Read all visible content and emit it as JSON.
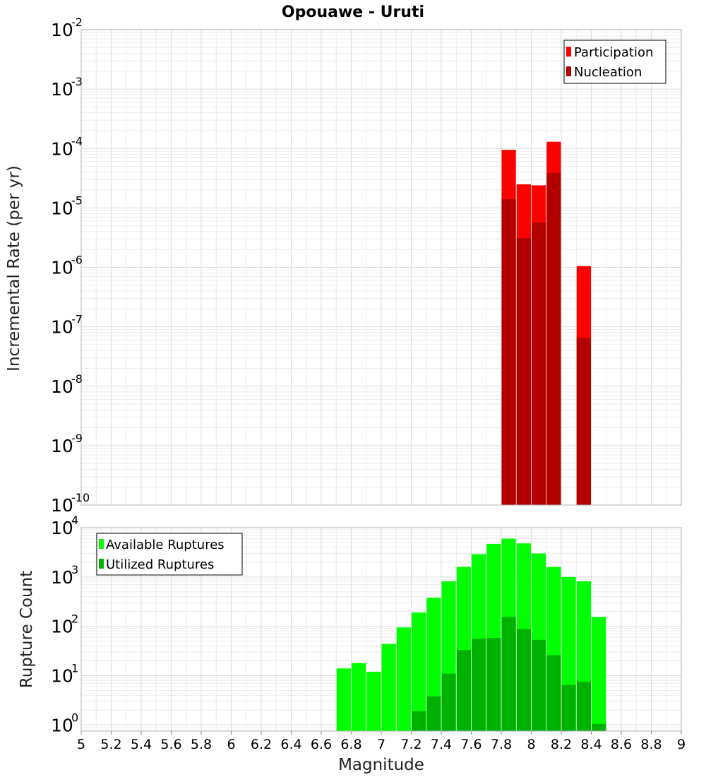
{
  "chart_data": [
    {
      "type": "bar",
      "title": "Opouawe - Uruti",
      "xlabel": "Magnitude",
      "ylabel": "Incremental Rate (per yr)",
      "yscale": "log",
      "ylim": [
        1e-10,
        0.01
      ],
      "xlim": [
        5,
        9
      ],
      "y_tick_exponents": [
        -10,
        -9,
        -8,
        -7,
        -6,
        -5,
        -4,
        -3,
        -2
      ],
      "legend": {
        "placement": "top-right",
        "entries": [
          "Participation",
          "Nucleation"
        ]
      },
      "series": [
        {
          "name": "Participation",
          "color": "#ff0000",
          "points": [
            {
              "x": 7.85,
              "y": 9.5e-05
            },
            {
              "x": 7.95,
              "y": 2.5e-05
            },
            {
              "x": 8.05,
              "y": 2.4e-05
            },
            {
              "x": 8.15,
              "y": 0.00013
            },
            {
              "x": 8.35,
              "y": 1.05e-06
            }
          ]
        },
        {
          "name": "Nucleation",
          "color": "#b20000",
          "points": [
            {
              "x": 7.85,
              "y": 1.4e-05
            },
            {
              "x": 7.95,
              "y": 3.1e-06
            },
            {
              "x": 8.05,
              "y": 5.7e-06
            },
            {
              "x": 8.15,
              "y": 3.9e-05
            },
            {
              "x": 8.35,
              "y": 6.5e-08
            }
          ]
        }
      ]
    },
    {
      "type": "bar",
      "title": "",
      "xlabel": "Magnitude",
      "ylabel": "Rupture Count",
      "yscale": "log",
      "ylim": [
        0.75,
        10000
      ],
      "xlim": [
        5,
        9
      ],
      "y_tick_exponents": [
        0,
        1,
        2,
        3,
        4
      ],
      "x_ticks": [
        "5",
        "5.2",
        "5.4",
        "5.6",
        "5.8",
        "6",
        "6.2",
        "6.4",
        "6.6",
        "6.8",
        "7",
        "7.2",
        "7.4",
        "7.6",
        "7.8",
        "8",
        "8.2",
        "8.4",
        "8.6",
        "8.8",
        "9"
      ],
      "legend": {
        "placement": "top-left",
        "entries": [
          "Available Ruptures",
          "Utilized Ruptures"
        ]
      },
      "series": [
        {
          "name": "Available Ruptures",
          "color": "#00ff00",
          "points": [
            {
              "x": 6.75,
              "y": 14
            },
            {
              "x": 6.85,
              "y": 18
            },
            {
              "x": 6.95,
              "y": 12
            },
            {
              "x": 7.05,
              "y": 44
            },
            {
              "x": 7.15,
              "y": 95
            },
            {
              "x": 7.25,
              "y": 190
            },
            {
              "x": 7.35,
              "y": 380
            },
            {
              "x": 7.45,
              "y": 820
            },
            {
              "x": 7.55,
              "y": 1600
            },
            {
              "x": 7.65,
              "y": 2900
            },
            {
              "x": 7.75,
              "y": 4700
            },
            {
              "x": 7.85,
              "y": 6000
            },
            {
              "x": 7.95,
              "y": 4800
            },
            {
              "x": 8.05,
              "y": 3000
            },
            {
              "x": 8.15,
              "y": 1600
            },
            {
              "x": 8.25,
              "y": 1000
            },
            {
              "x": 8.35,
              "y": 820
            },
            {
              "x": 8.45,
              "y": 155
            }
          ]
        },
        {
          "name": "Utilized Ruptures",
          "color": "#00b200",
          "points": [
            {
              "x": 7.25,
              "y": 1.9
            },
            {
              "x": 7.35,
              "y": 3.8
            },
            {
              "x": 7.45,
              "y": 11
            },
            {
              "x": 7.55,
              "y": 33
            },
            {
              "x": 7.65,
              "y": 56
            },
            {
              "x": 7.75,
              "y": 58
            },
            {
              "x": 7.85,
              "y": 155
            },
            {
              "x": 7.95,
              "y": 88
            },
            {
              "x": 8.05,
              "y": 53
            },
            {
              "x": 8.15,
              "y": 26
            },
            {
              "x": 8.25,
              "y": 6.5
            },
            {
              "x": 8.35,
              "y": 7.5
            },
            {
              "x": 8.45,
              "y": 1.05
            }
          ]
        }
      ]
    }
  ]
}
